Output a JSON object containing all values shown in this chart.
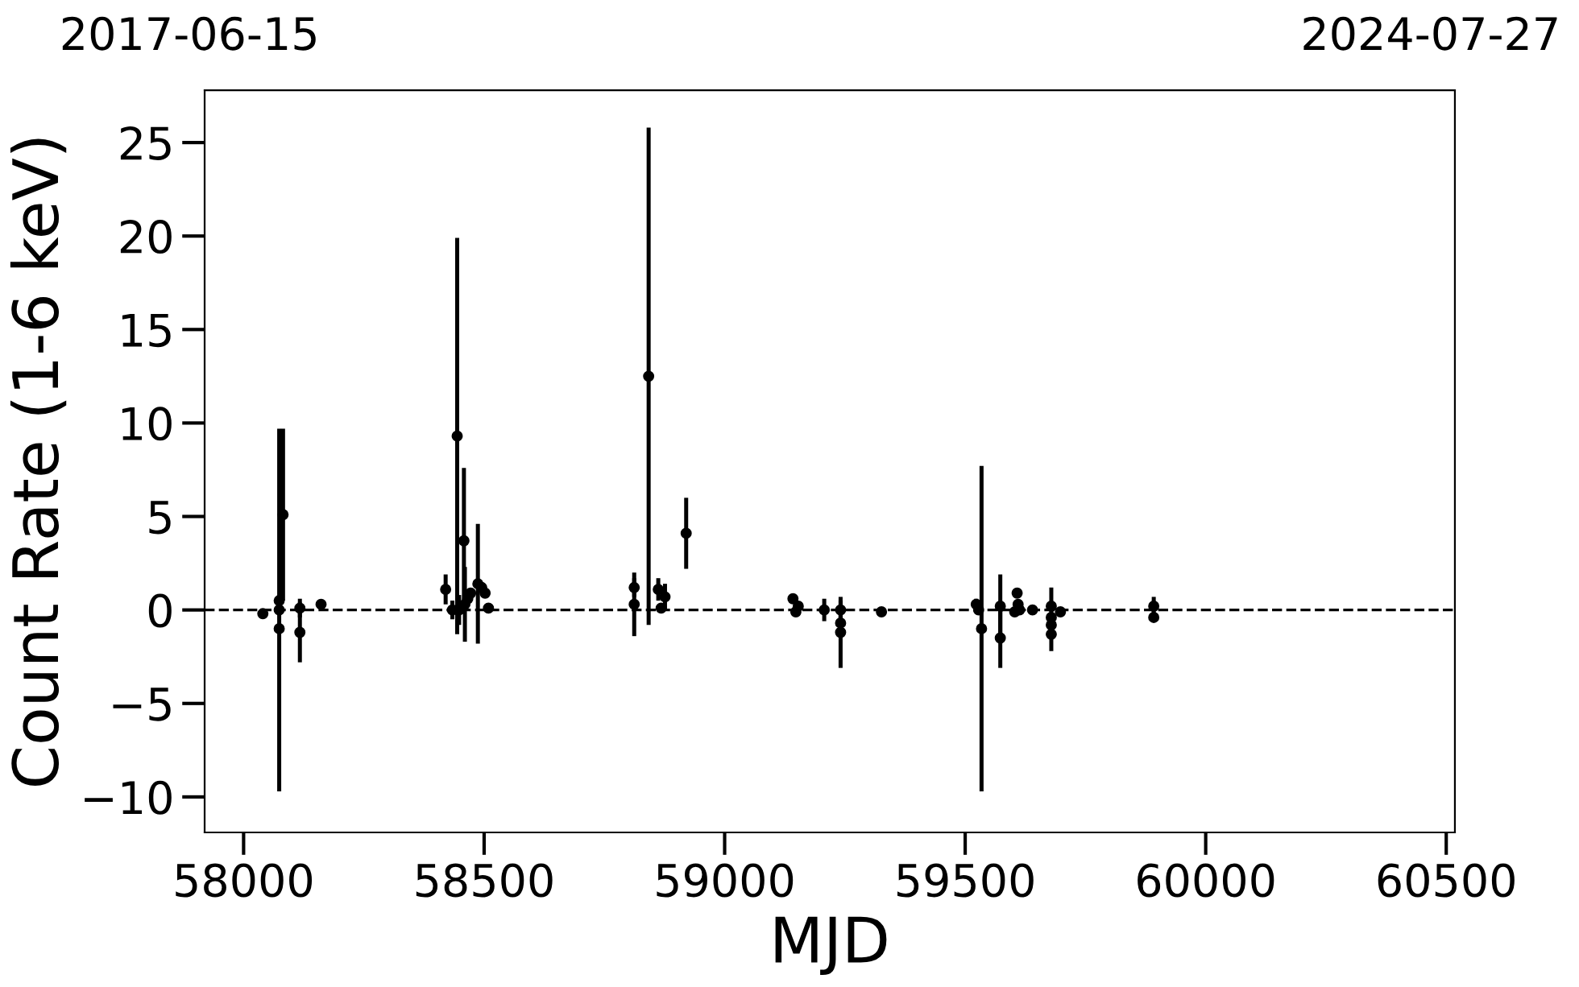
{
  "chart_data": {
    "type": "scatter",
    "xlabel": "MJD",
    "ylabel": "Count Rate (1-6 keV)",
    "annotations": [
      "2017-06-15",
      "2024-07-27"
    ],
    "xlim": [
      57919,
      60518
    ],
    "xticks": [
      58000,
      58500,
      59000,
      59500,
      60000,
      60500
    ],
    "ylim": [
      -11.9,
      27.8
    ],
    "yticks": [
      -10,
      -5,
      0,
      5,
      10,
      15,
      20,
      25
    ],
    "marker": "circle",
    "ref_lines": [
      {
        "axis": "y",
        "value": 0,
        "color": "#000000",
        "line_style": "dashed"
      }
    ],
    "series": [
      {
        "color": "#000000",
        "x": [
          58040,
          58074,
          58074,
          58074,
          58082,
          58117,
          58117,
          58161,
          58420,
          58434,
          58444,
          58448,
          58458,
          58460,
          58466,
          58472,
          58487,
          58495,
          58502,
          58509,
          58812,
          58812,
          58842,
          58862,
          58868,
          58876,
          58920,
          59142,
          59148,
          59153,
          59207,
          59241,
          59241,
          59241,
          59326,
          59523,
          59528,
          59534,
          59573,
          59573,
          59603,
          59608,
          59610,
          59613,
          59640,
          59679,
          59679,
          59679,
          59679,
          59698,
          59892,
          59892
        ],
        "values": [
          -0.2,
          0.5,
          0,
          -1.0,
          5.1,
          0.1,
          -1.2,
          0.3,
          1.1,
          0.0,
          9.3,
          0.0,
          3.7,
          0.3,
          0.6,
          0.9,
          1.4,
          1.2,
          0.9,
          0.1,
          1.2,
          0.3,
          12.5,
          1.1,
          0.1,
          0.7,
          4.1,
          0.6,
          -0.1,
          0.2,
          0.0,
          0,
          -0.7,
          -1.2,
          -0.1,
          0.3,
          0,
          -1.0,
          0.2,
          -1.5,
          -0.1,
          0.9,
          0.3,
          0.0,
          0,
          0.2,
          -0.4,
          -0.8,
          -1.3,
          -0.1,
          0.2,
          -0.4
        ],
        "errors": [
          null,
          null,
          9.7,
          null,
          4.6,
          0.5,
          1.6,
          null,
          0.8,
          0.5,
          10.6,
          0.8,
          3.9,
          2.0,
          0.4,
          null,
          3.2,
          null,
          null,
          null,
          0.5,
          1.7,
          13.3,
          0.6,
          null,
          0.7,
          1.9,
          null,
          null,
          null,
          0.6,
          0.5,
          0.5,
          1.9,
          null,
          0.3,
          null,
          8.7,
          1.7,
          1.6,
          null,
          null,
          null,
          null,
          null,
          1.0,
          null,
          null,
          0.9,
          null,
          0.5,
          null
        ]
      }
    ]
  }
}
